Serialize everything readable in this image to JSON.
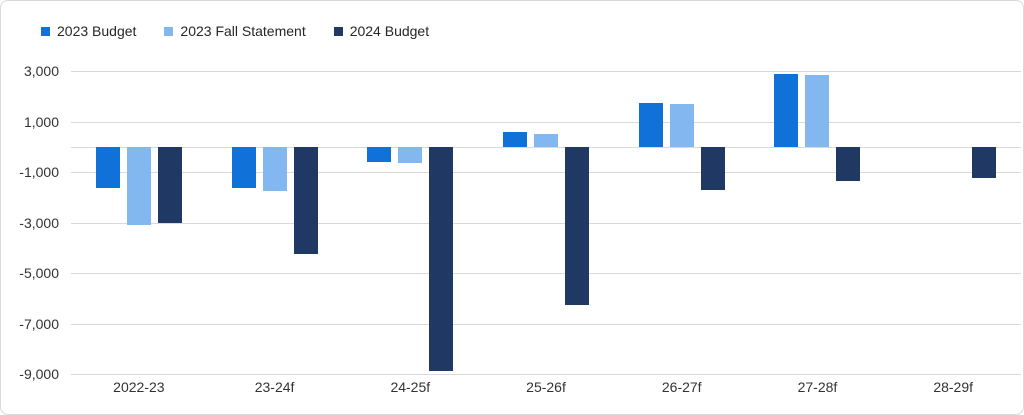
{
  "chart_data": {
    "type": "bar",
    "title": "",
    "categories": [
      "2022-23",
      "23-24f",
      "24-25f",
      "25-26f",
      "26-27f",
      "27-28f",
      "28-29f"
    ],
    "series": [
      {
        "name": "2023 Budget",
        "color": "#1072d8",
        "values": [
          -1650,
          -1650,
          -600,
          600,
          1750,
          2900,
          null
        ]
      },
      {
        "name": "2023 Fall Statement",
        "color": "#82b7f0",
        "values": [
          -3100,
          -1750,
          -650,
          500,
          1700,
          2850,
          null
        ]
      },
      {
        "name": "2024 Budget",
        "color": "#203864",
        "values": [
          -3000,
          -4250,
          -8900,
          -6250,
          -1700,
          -1350,
          -1250
        ]
      }
    ],
    "ylim": [
      -9000,
      3000
    ],
    "yticks": [
      3000,
      1000,
      -1000,
      -3000,
      -5000,
      -7000,
      -9000
    ],
    "ytick_labels": [
      "3,000",
      "1,000",
      "-1,000",
      "-3,000",
      "-5,000",
      "-7,000",
      "-9,000"
    ],
    "xlabel": "",
    "ylabel": "",
    "grid": true,
    "legend_position": "top-left",
    "colors": {
      "background": "#ffffff",
      "border": "#d9d9d9",
      "gridline": "#d9d9d9",
      "axis_text": "#333333",
      "legend_text": "#262626"
    }
  }
}
